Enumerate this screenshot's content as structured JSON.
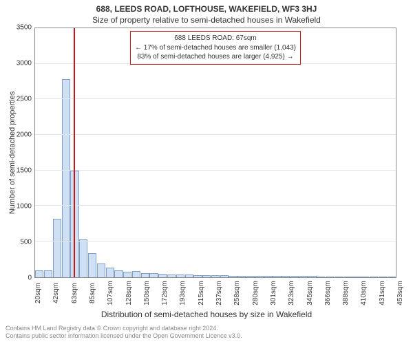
{
  "chart": {
    "type": "histogram",
    "title": "688, LEEDS ROAD, LOFTHOUSE, WAKEFIELD, WF3 3HJ",
    "subtitle": "Size of property relative to semi-detached houses in Wakefield",
    "xlabel": "Distribution of semi-detached houses by size in Wakefield",
    "ylabel": "Number of semi-detached properties",
    "background_color": "#ffffff",
    "axis_color": "#888888",
    "grid_color": "#e5e5e5",
    "font_color": "#333333",
    "title_fontsize": 12,
    "label_fontsize": 12,
    "tick_fontsize": 10,
    "ylim": [
      0,
      3500
    ],
    "yticks": [
      0,
      500,
      1000,
      1500,
      2000,
      2500,
      3000,
      3500
    ],
    "xticks": [
      "20sqm",
      "42sqm",
      "63sqm",
      "85sqm",
      "107sqm",
      "128sqm",
      "150sqm",
      "172sqm",
      "193sqm",
      "215sqm",
      "237sqm",
      "258sqm",
      "280sqm",
      "301sqm",
      "323sqm",
      "345sqm",
      "366sqm",
      "388sqm",
      "410sqm",
      "431sqm",
      "453sqm"
    ],
    "bar_color": "#cfe0f5",
    "bar_border_color": "#7f9fc7",
    "bar_values": [
      90,
      90,
      820,
      2780,
      1500,
      530,
      330,
      190,
      130,
      90,
      70,
      80,
      50,
      50,
      40,
      30,
      30,
      30,
      25,
      25,
      20,
      20,
      15,
      15,
      15,
      12,
      12,
      12,
      10,
      10,
      10,
      10,
      8,
      8,
      8,
      8,
      6,
      6,
      6,
      6,
      5
    ],
    "marker": {
      "position_index": 4.4,
      "color": "#c41616"
    },
    "annotation": {
      "line1": "688 LEEDS ROAD: 67sqm",
      "line2": "← 17% of semi-detached houses are smaller (1,043)",
      "line3": "83% of semi-detached houses are larger (4,925) →",
      "border_color": "#c41616",
      "bg_color": "#ffffff"
    },
    "footer_line1": "Contains HM Land Registry data © Crown copyright and database right 2024.",
    "footer_line2": "Contains public sector information licensed under the Open Government Licence v3.0."
  }
}
